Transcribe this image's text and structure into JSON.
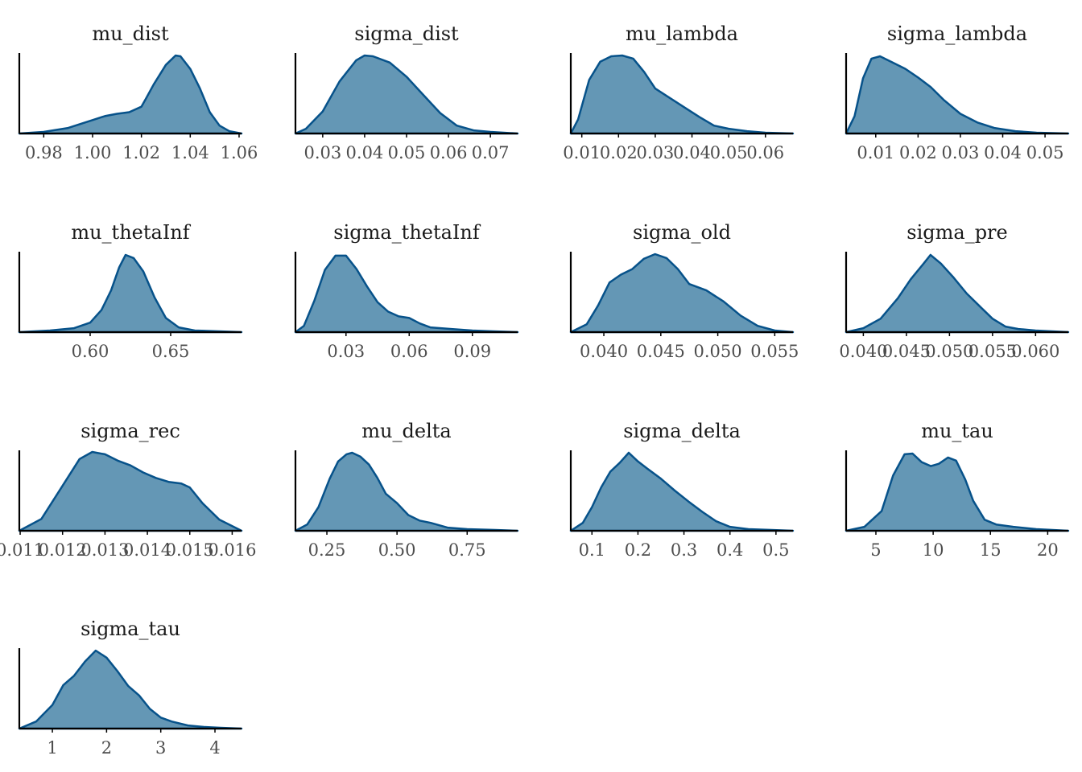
{
  "colors": {
    "fill": "#6497b5",
    "line": "#07528a",
    "axis": "#000000",
    "text": "#1a1a1a",
    "tick_text": "#4d4d4d"
  },
  "chart_data": [
    {
      "type": "area",
      "title": "mu_dist",
      "xlim": [
        0.97,
        1.061
      ],
      "ticks": [
        0.98,
        1.0,
        1.02,
        1.04,
        1.06
      ],
      "tick_labels": [
        "0.98",
        "1.00",
        "1.02",
        "1.04",
        "1.06"
      ],
      "x": [
        0.97,
        0.98,
        0.99,
        0.995,
        1.0,
        1.005,
        1.01,
        1.015,
        1.02,
        1.022,
        1.025,
        1.03,
        1.034,
        1.036,
        1.04,
        1.044,
        1.048,
        1.052,
        1.056,
        1.061
      ],
      "y": [
        0.0,
        0.02,
        0.07,
        0.12,
        0.17,
        0.22,
        0.25,
        0.27,
        0.34,
        0.45,
        0.62,
        0.87,
        0.99,
        0.98,
        0.82,
        0.57,
        0.27,
        0.1,
        0.03,
        0.0
      ]
    },
    {
      "type": "area",
      "title": "sigma_dist",
      "xlim": [
        0.0235,
        0.0765
      ],
      "ticks": [
        0.03,
        0.04,
        0.05,
        0.06,
        0.07
      ],
      "tick_labels": [
        "0.03",
        "0.04",
        "0.05",
        "0.06",
        "0.07"
      ],
      "x": [
        0.0235,
        0.026,
        0.03,
        0.034,
        0.038,
        0.04,
        0.042,
        0.046,
        0.05,
        0.054,
        0.058,
        0.062,
        0.066,
        0.07,
        0.0765
      ],
      "y": [
        0.0,
        0.06,
        0.28,
        0.66,
        0.93,
        0.99,
        0.98,
        0.9,
        0.72,
        0.49,
        0.26,
        0.1,
        0.04,
        0.02,
        0.0
      ]
    },
    {
      "type": "area",
      "title": "mu_lambda",
      "xlim": [
        0.007,
        0.0675
      ],
      "ticks": [
        0.01,
        0.02,
        0.03,
        0.04,
        0.05,
        0.06
      ],
      "tick_labels": [
        "0.01",
        "0.02",
        "0.03",
        "0.04",
        "0.05",
        "0.06"
      ],
      "x": [
        0.007,
        0.009,
        0.012,
        0.015,
        0.018,
        0.021,
        0.024,
        0.027,
        0.03,
        0.034,
        0.038,
        0.042,
        0.046,
        0.05,
        0.055,
        0.06,
        0.0675
      ],
      "y": [
        0.0,
        0.18,
        0.68,
        0.91,
        0.98,
        0.99,
        0.95,
        0.78,
        0.57,
        0.45,
        0.33,
        0.21,
        0.1,
        0.06,
        0.03,
        0.01,
        0.0
      ]
    },
    {
      "type": "area",
      "title": "sigma_lambda",
      "xlim": [
        0.003,
        0.0555
      ],
      "ticks": [
        0.01,
        0.02,
        0.03,
        0.04,
        0.05
      ],
      "tick_labels": [
        "0.01",
        "0.02",
        "0.03",
        "0.04",
        "0.05"
      ],
      "x": [
        0.003,
        0.005,
        0.007,
        0.009,
        0.011,
        0.014,
        0.017,
        0.02,
        0.023,
        0.026,
        0.03,
        0.034,
        0.038,
        0.043,
        0.048,
        0.0555
      ],
      "y": [
        0.0,
        0.22,
        0.7,
        0.95,
        0.98,
        0.9,
        0.82,
        0.71,
        0.59,
        0.43,
        0.25,
        0.14,
        0.07,
        0.03,
        0.01,
        0.0
      ]
    },
    {
      "type": "area",
      "title": "mu_thetaInf",
      "xlim": [
        0.556,
        0.694
      ],
      "ticks": [
        0.6,
        0.65
      ],
      "tick_labels": [
        "0.60",
        "0.65"
      ],
      "x": [
        0.556,
        0.575,
        0.59,
        0.6,
        0.607,
        0.613,
        0.618,
        0.622,
        0.627,
        0.633,
        0.64,
        0.647,
        0.655,
        0.665,
        0.68,
        0.694
      ],
      "y": [
        0.0,
        0.02,
        0.05,
        0.12,
        0.28,
        0.53,
        0.82,
        0.98,
        0.94,
        0.77,
        0.44,
        0.18,
        0.06,
        0.02,
        0.01,
        0.0
      ]
    },
    {
      "type": "area",
      "title": "sigma_thetaInf",
      "xlim": [
        0.006,
        0.1115
      ],
      "ticks": [
        0.03,
        0.06,
        0.09
      ],
      "tick_labels": [
        "0.03",
        "0.06",
        "0.09"
      ],
      "x": [
        0.006,
        0.01,
        0.015,
        0.02,
        0.025,
        0.03,
        0.035,
        0.04,
        0.045,
        0.05,
        0.055,
        0.06,
        0.065,
        0.07,
        0.075,
        0.08,
        0.09,
        0.1,
        0.1115
      ],
      "y": [
        0.0,
        0.08,
        0.4,
        0.79,
        0.97,
        0.97,
        0.8,
        0.58,
        0.38,
        0.26,
        0.2,
        0.18,
        0.11,
        0.06,
        0.05,
        0.04,
        0.02,
        0.01,
        0.0
      ]
    },
    {
      "type": "area",
      "title": "sigma_old",
      "xlim": [
        0.0371,
        0.0566
      ],
      "ticks": [
        0.04,
        0.045,
        0.05,
        0.055
      ],
      "tick_labels": [
        "0.040",
        "0.045",
        "0.050",
        "0.055"
      ],
      "x": [
        0.0371,
        0.0385,
        0.0395,
        0.0405,
        0.0415,
        0.0425,
        0.0435,
        0.0445,
        0.0455,
        0.0465,
        0.0475,
        0.049,
        0.0505,
        0.052,
        0.0535,
        0.055,
        0.0566
      ],
      "y": [
        0.0,
        0.1,
        0.34,
        0.63,
        0.73,
        0.8,
        0.93,
        0.99,
        0.94,
        0.8,
        0.61,
        0.53,
        0.39,
        0.21,
        0.08,
        0.02,
        0.0
      ]
    },
    {
      "type": "area",
      "title": "sigma_pre",
      "xlim": [
        0.038,
        0.0638
      ],
      "ticks": [
        0.04,
        0.045,
        0.05,
        0.055,
        0.06
      ],
      "tick_labels": [
        "0.040",
        "0.045",
        "0.050",
        "0.055",
        "0.060"
      ],
      "x": [
        0.038,
        0.04,
        0.042,
        0.044,
        0.0455,
        0.047,
        0.0478,
        0.049,
        0.0505,
        0.052,
        0.0535,
        0.055,
        0.0565,
        0.058,
        0.06,
        0.0638
      ],
      "y": [
        0.0,
        0.05,
        0.17,
        0.43,
        0.67,
        0.87,
        0.98,
        0.87,
        0.69,
        0.49,
        0.33,
        0.17,
        0.07,
        0.04,
        0.02,
        0.0
      ]
    },
    {
      "type": "area",
      "title": "sigma_rec",
      "xlim": [
        0.01098,
        0.01622
      ],
      "ticks": [
        0.011,
        0.012,
        0.013,
        0.014,
        0.015,
        0.016
      ],
      "tick_labels": [
        "0.011",
        "0.012",
        "0.013",
        "0.014",
        "0.015",
        "0.016"
      ],
      "x": [
        0.01098,
        0.0115,
        0.012,
        0.0124,
        0.0127,
        0.013,
        0.0133,
        0.0136,
        0.0139,
        0.0142,
        0.0145,
        0.0148,
        0.015,
        0.0153,
        0.0157,
        0.01622
      ],
      "y": [
        0.0,
        0.15,
        0.57,
        0.91,
        1.0,
        0.97,
        0.89,
        0.83,
        0.74,
        0.67,
        0.62,
        0.6,
        0.55,
        0.35,
        0.14,
        0.0
      ]
    },
    {
      "type": "area",
      "title": "mu_delta",
      "xlim": [
        0.138,
        0.93
      ],
      "ticks": [
        0.25,
        0.5,
        0.75
      ],
      "tick_labels": [
        "0.25",
        "0.50",
        "0.75"
      ],
      "x": [
        0.138,
        0.18,
        0.22,
        0.26,
        0.29,
        0.32,
        0.34,
        0.37,
        0.4,
        0.43,
        0.46,
        0.5,
        0.54,
        0.58,
        0.62,
        0.68,
        0.75,
        0.85,
        0.93
      ],
      "y": [
        0.0,
        0.08,
        0.3,
        0.66,
        0.88,
        0.97,
        0.99,
        0.94,
        0.84,
        0.67,
        0.47,
        0.35,
        0.2,
        0.13,
        0.1,
        0.04,
        0.02,
        0.01,
        0.0
      ]
    },
    {
      "type": "area",
      "title": "sigma_delta",
      "xlim": [
        0.054,
        0.537
      ],
      "ticks": [
        0.1,
        0.2,
        0.3,
        0.4,
        0.5
      ],
      "tick_labels": [
        "0.1",
        "0.2",
        "0.3",
        "0.4",
        "0.5"
      ],
      "x": [
        0.054,
        0.08,
        0.1,
        0.12,
        0.14,
        0.16,
        0.18,
        0.2,
        0.22,
        0.25,
        0.28,
        0.31,
        0.34,
        0.37,
        0.4,
        0.44,
        0.49,
        0.537
      ],
      "y": [
        0.0,
        0.1,
        0.3,
        0.55,
        0.75,
        0.86,
        0.99,
        0.88,
        0.79,
        0.66,
        0.51,
        0.37,
        0.24,
        0.12,
        0.05,
        0.02,
        0.01,
        0.0
      ]
    },
    {
      "type": "area",
      "title": "mu_tau",
      "xlim": [
        2.4,
        21.8
      ],
      "ticks": [
        5,
        10,
        15,
        20
      ],
      "tick_labels": [
        "5",
        "10",
        "15",
        "20"
      ],
      "x": [
        2.4,
        4.0,
        5.5,
        6.5,
        7.5,
        8.2,
        9.0,
        9.8,
        10.5,
        11.3,
        12.0,
        12.8,
        13.5,
        14.5,
        15.5,
        17.0,
        19.0,
        21.8
      ],
      "y": [
        0.0,
        0.05,
        0.25,
        0.7,
        0.97,
        0.98,
        0.87,
        0.82,
        0.85,
        0.93,
        0.89,
        0.65,
        0.38,
        0.14,
        0.08,
        0.05,
        0.02,
        0.0
      ]
    },
    {
      "type": "area",
      "title": "sigma_tau",
      "xlim": [
        0.39,
        4.49
      ],
      "ticks": [
        1,
        2,
        3,
        4
      ],
      "tick_labels": [
        "1",
        "2",
        "3",
        "4"
      ],
      "x": [
        0.39,
        0.7,
        1.0,
        1.2,
        1.4,
        1.6,
        1.8,
        2.0,
        2.2,
        2.4,
        2.6,
        2.8,
        3.0,
        3.2,
        3.5,
        3.8,
        4.1,
        4.49
      ],
      "y": [
        0.0,
        0.09,
        0.3,
        0.55,
        0.67,
        0.85,
        0.99,
        0.9,
        0.73,
        0.54,
        0.42,
        0.25,
        0.14,
        0.09,
        0.04,
        0.02,
        0.01,
        0.0
      ]
    }
  ]
}
